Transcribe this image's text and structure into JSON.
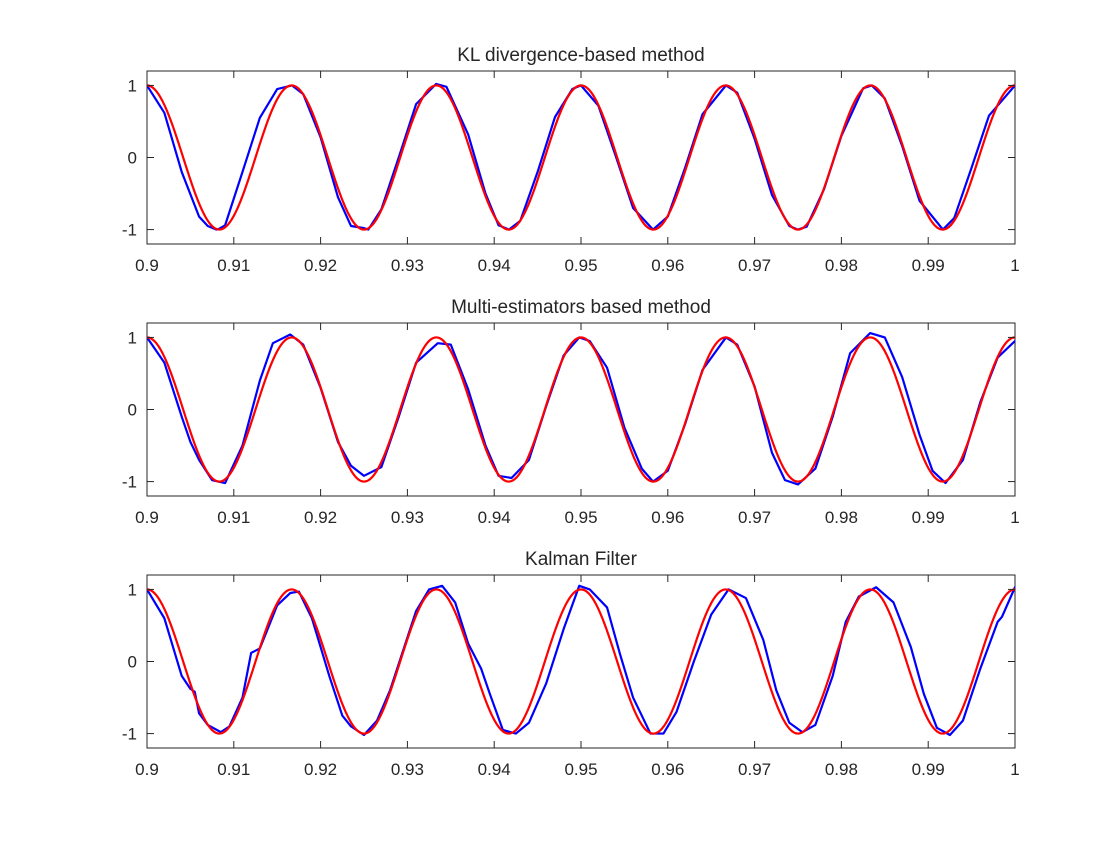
{
  "chart_data": [
    {
      "type": "line",
      "title": "KL divergence-based method",
      "xlim": [
        0.9,
        1.0
      ],
      "ylim": [
        -1.2,
        1.2
      ],
      "xticks": [
        0.9,
        0.91,
        0.92,
        0.93,
        0.94,
        0.95,
        0.96,
        0.97,
        0.98,
        0.99,
        1.0
      ],
      "xtick_labels": [
        "0.9",
        "0.91",
        "0.92",
        "0.93",
        "0.94",
        "0.95",
        "0.96",
        "0.97",
        "0.98",
        "0.99",
        "1"
      ],
      "yticks": [
        -1,
        0,
        1
      ],
      "ytick_labels": [
        "-1",
        "0",
        "1"
      ],
      "grid": false,
      "series": [
        {
          "color": "#0000ff",
          "x": [
            0.9,
            0.902,
            0.904,
            0.906,
            0.907,
            0.908,
            0.9083,
            0.909,
            0.911,
            0.913,
            0.915,
            0.9167,
            0.918,
            0.92,
            0.922,
            0.9235,
            0.925,
            0.9255,
            0.927,
            0.929,
            0.931,
            0.9333,
            0.9345,
            0.937,
            0.939,
            0.9405,
            0.9417,
            0.943,
            0.945,
            0.947,
            0.949,
            0.95,
            0.952,
            0.954,
            0.956,
            0.9583,
            0.96,
            0.962,
            0.964,
            0.9667,
            0.968,
            0.97,
            0.972,
            0.974,
            0.975,
            0.976,
            0.978,
            0.98,
            0.9825,
            0.9835,
            0.985,
            0.987,
            0.989,
            0.9917,
            0.993,
            0.995,
            0.997,
            1.0
          ],
          "y": [
            1.0,
            0.62,
            -0.2,
            -0.82,
            -0.95,
            -1.0,
            -0.99,
            -0.94,
            -0.2,
            0.55,
            0.95,
            1.0,
            0.88,
            0.28,
            -0.55,
            -0.95,
            -0.98,
            -1.0,
            -0.72,
            0.0,
            0.74,
            1.02,
            0.98,
            0.32,
            -0.5,
            -0.94,
            -1.0,
            -0.88,
            -0.2,
            0.56,
            0.95,
            1.0,
            0.72,
            0.02,
            -0.7,
            -1.0,
            -0.82,
            -0.14,
            0.6,
            1.0,
            0.9,
            0.26,
            -0.52,
            -0.95,
            -1.0,
            -0.96,
            -0.44,
            0.3,
            0.96,
            1.0,
            0.82,
            0.16,
            -0.6,
            -1.0,
            -0.84,
            -0.14,
            0.58,
            1.0
          ]
        },
        {
          "color": "#ff0000",
          "freq_hz": 60,
          "amplitude": 1.0,
          "phase_rad": 0.0
        }
      ]
    },
    {
      "type": "line",
      "title": "Multi-estimators based method",
      "xlim": [
        0.9,
        1.0
      ],
      "ylim": [
        -1.2,
        1.2
      ],
      "xticks": [
        0.9,
        0.91,
        0.92,
        0.93,
        0.94,
        0.95,
        0.96,
        0.97,
        0.98,
        0.99,
        1.0
      ],
      "xtick_labels": [
        "0.9",
        "0.91",
        "0.92",
        "0.93",
        "0.94",
        "0.95",
        "0.96",
        "0.97",
        "0.98",
        "0.99",
        "1"
      ],
      "yticks": [
        -1,
        0,
        1
      ],
      "ytick_labels": [
        "-1",
        "0",
        "1"
      ],
      "grid": false,
      "series": [
        {
          "color": "#0000ff",
          "x": [
            0.9,
            0.902,
            0.904,
            0.905,
            0.906,
            0.9075,
            0.909,
            0.911,
            0.913,
            0.9145,
            0.9165,
            0.918,
            0.92,
            0.922,
            0.9235,
            0.925,
            0.927,
            0.929,
            0.931,
            0.9335,
            0.935,
            0.937,
            0.939,
            0.9405,
            0.942,
            0.944,
            0.946,
            0.948,
            0.9498,
            0.951,
            0.953,
            0.955,
            0.957,
            0.9583,
            0.96,
            0.962,
            0.964,
            0.9667,
            0.968,
            0.97,
            0.972,
            0.9735,
            0.975,
            0.977,
            0.979,
            0.981,
            0.9833,
            0.985,
            0.987,
            0.989,
            0.9905,
            0.992,
            0.994,
            0.996,
            0.998,
            1.0
          ],
          "y": [
            1.0,
            0.65,
            -0.1,
            -0.45,
            -0.7,
            -0.98,
            -1.02,
            -0.5,
            0.4,
            0.92,
            1.04,
            0.9,
            0.3,
            -0.45,
            -0.78,
            -0.92,
            -0.8,
            -0.1,
            0.65,
            0.92,
            0.9,
            0.28,
            -0.5,
            -0.92,
            -0.95,
            -0.7,
            0.05,
            0.75,
            1.0,
            0.95,
            0.58,
            -0.25,
            -0.82,
            -1.0,
            -0.85,
            -0.2,
            0.55,
            1.0,
            0.9,
            0.32,
            -0.6,
            -0.98,
            -1.04,
            -0.82,
            -0.1,
            0.78,
            1.06,
            1.0,
            0.45,
            -0.35,
            -0.85,
            -1.02,
            -0.7,
            0.1,
            0.72,
            0.95
          ]
        },
        {
          "color": "#ff0000",
          "freq_hz": 60,
          "amplitude": 1.0,
          "phase_rad": 0.0
        }
      ]
    },
    {
      "type": "line",
      "title": "Kalman Filter",
      "xlim": [
        0.9,
        1.0
      ],
      "ylim": [
        -1.2,
        1.2
      ],
      "xticks": [
        0.9,
        0.91,
        0.92,
        0.93,
        0.94,
        0.95,
        0.96,
        0.97,
        0.98,
        0.99,
        1.0
      ],
      "xtick_labels": [
        "0.9",
        "0.91",
        "0.92",
        "0.93",
        "0.94",
        "0.95",
        "0.96",
        "0.97",
        "0.98",
        "0.99",
        "1"
      ],
      "yticks": [
        -1,
        0,
        1
      ],
      "ytick_labels": [
        "-1",
        "0",
        "1"
      ],
      "grid": false,
      "series": [
        {
          "color": "#0000ff",
          "x": [
            0.9,
            0.902,
            0.904,
            0.905,
            0.9055,
            0.906,
            0.907,
            0.9085,
            0.9095,
            0.911,
            0.912,
            0.913,
            0.915,
            0.9165,
            0.9175,
            0.919,
            0.921,
            0.9225,
            0.9235,
            0.925,
            0.9265,
            0.928,
            0.9295,
            0.931,
            0.9325,
            0.934,
            0.9355,
            0.937,
            0.9385,
            0.9395,
            0.941,
            0.9425,
            0.944,
            0.946,
            0.948,
            0.9498,
            0.951,
            0.953,
            0.9545,
            0.956,
            0.958,
            0.9595,
            0.961,
            0.963,
            0.965,
            0.967,
            0.969,
            0.971,
            0.9725,
            0.974,
            0.9755,
            0.977,
            0.979,
            0.9805,
            0.982,
            0.984,
            0.986,
            0.988,
            0.9895,
            0.991,
            0.9925,
            0.994,
            0.996,
            0.998,
            0.9985,
            1.0
          ],
          "y": [
            1.0,
            0.6,
            -0.2,
            -0.38,
            -0.42,
            -0.72,
            -0.88,
            -0.98,
            -0.9,
            -0.5,
            0.12,
            0.18,
            0.78,
            0.95,
            0.97,
            0.6,
            -0.2,
            -0.75,
            -0.9,
            -1.02,
            -0.82,
            -0.4,
            0.15,
            0.7,
            1.0,
            1.05,
            0.82,
            0.25,
            -0.1,
            -0.45,
            -0.95,
            -1.0,
            -0.85,
            -0.3,
            0.45,
            1.05,
            1.0,
            0.75,
            0.1,
            -0.5,
            -1.0,
            -1.0,
            -0.7,
            0.0,
            0.65,
            1.0,
            0.88,
            0.3,
            -0.4,
            -0.85,
            -0.98,
            -0.88,
            -0.2,
            0.55,
            0.9,
            1.03,
            0.82,
            0.2,
            -0.45,
            -0.92,
            -1.02,
            -0.82,
            -0.1,
            0.55,
            0.62,
            1.03
          ]
        },
        {
          "color": "#ff0000",
          "freq_hz": 60,
          "amplitude": 1.0,
          "phase_rad": 0.0
        }
      ]
    }
  ]
}
